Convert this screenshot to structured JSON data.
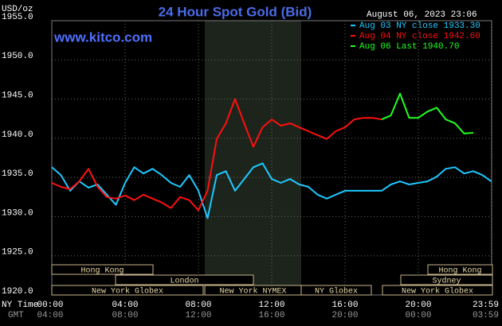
{
  "chart_data": {
    "type": "line",
    "title": "24 Hour Spot Gold (Bid)",
    "ylabel": "USD/oz",
    "timestamp": "August 06, 2023 23:06",
    "watermark": "www.kitco.com",
    "x_row_label": "NY Time",
    "x2_row_label": "GMT",
    "x": [
      0,
      0.5,
      1,
      1.5,
      2,
      2.5,
      3,
      3.5,
      4,
      4.5,
      5,
      5.5,
      6,
      6.5,
      7,
      7.5,
      8,
      8.5,
      9,
      9.5,
      10,
      10.5,
      11,
      11.5,
      12,
      12.5,
      13,
      13.5,
      14,
      14.5,
      15,
      15.5,
      16,
      16.5,
      17,
      17.5,
      18,
      18.5,
      19,
      19.5,
      20,
      20.5,
      21,
      21.5,
      22,
      22.5,
      23,
      23.5,
      23.98
    ],
    "xlim": [
      0,
      24
    ],
    "xticks": [
      {
        "value": 0,
        "label": "00:00"
      },
      {
        "value": 4,
        "label": "04:00"
      },
      {
        "value": 8,
        "label": "08:00"
      },
      {
        "value": 12,
        "label": "12:00"
      },
      {
        "value": 16,
        "label": "16:00"
      },
      {
        "value": 20,
        "label": "20:00"
      },
      {
        "value": 23.98,
        "label": "23:59"
      }
    ],
    "gmt_labels": [
      "04:00",
      "08:00",
      "12:00",
      "16:00",
      "20:00",
      "00:00",
      "03:59"
    ],
    "ylim": [
      1920,
      1955
    ],
    "yticks": [
      {
        "value": 1920,
        "label": "1920.0"
      },
      {
        "value": 1925,
        "label": "1925.0"
      },
      {
        "value": 1930,
        "label": "1930.0"
      },
      {
        "value": 1935,
        "label": "1935.0"
      },
      {
        "value": 1940,
        "label": "1940.0"
      },
      {
        "value": 1945,
        "label": "1945.0"
      },
      {
        "value": 1950,
        "label": "1950.0"
      },
      {
        "value": 1955,
        "label": "1955.0"
      }
    ],
    "grid": true,
    "sessions": [
      "Hong Kong",
      "London",
      "New York Globex",
      "New York NYMEX",
      "NY Globex",
      "Hong Kong",
      "Sydney",
      "New York Globex"
    ],
    "series": [
      {
        "name": "Aug 03 NY close 1933.30",
        "color": "#1ec8ff",
        "values": [
          1936.3,
          1935.3,
          1933.3,
          1934.5,
          1933.7,
          1934.1,
          1932.8,
          1931.5,
          1934.3,
          1936.3,
          1935.5,
          1936.1,
          1935.3,
          1934.3,
          1933.8,
          1935.3,
          1933.3,
          1929.8,
          1935.3,
          1935.8,
          1933.3,
          1934.8,
          1936.3,
          1936.8,
          1934.8,
          1934.3,
          1934.8,
          1934.1,
          1933.8,
          1932.8,
          1932.3,
          1932.8,
          1933.3,
          1933.3,
          1933.3,
          1933.3,
          1933.3,
          1934.1,
          1934.5,
          1934.1,
          1934.3,
          1934.5,
          1935.1,
          1936.1,
          1936.3,
          1935.5,
          1935.8,
          1935.3,
          1934.5
        ]
      },
      {
        "name": "Aug 04 NY close 1942.60",
        "color": "#ff1010",
        "values": [
          1934.3,
          1933.8,
          1933.5,
          1934.5,
          1936.1,
          1933.8,
          1932.5,
          1932.3,
          1932.7,
          1932.1,
          1932.8,
          1932.3,
          1931.8,
          1931.1,
          1932.5,
          1932.1,
          1930.8,
          1933.3,
          1939.9,
          1941.9,
          1945.0,
          1941.9,
          1938.9,
          1941.4,
          1942.4,
          1941.6,
          1941.9,
          1941.4,
          1940.9,
          1940.4,
          1939.9,
          1940.9,
          1941.4,
          1942.4,
          1942.6,
          1942.6,
          1942.4,
          null,
          null,
          null,
          null,
          null,
          null,
          null,
          null,
          null,
          null,
          null,
          null
        ]
      },
      {
        "name": "Aug 06 Last 1940.70",
        "color": "#20ff20",
        "values": [
          null,
          null,
          null,
          null,
          null,
          null,
          null,
          null,
          null,
          null,
          null,
          null,
          null,
          null,
          null,
          null,
          null,
          null,
          null,
          null,
          null,
          null,
          null,
          null,
          null,
          null,
          null,
          null,
          null,
          null,
          null,
          null,
          null,
          null,
          null,
          null,
          1942.4,
          1942.9,
          1945.7,
          1942.6,
          1942.6,
          1943.4,
          1943.9,
          1942.4,
          1941.9,
          1940.6,
          1940.7,
          null,
          null
        ]
      }
    ]
  }
}
